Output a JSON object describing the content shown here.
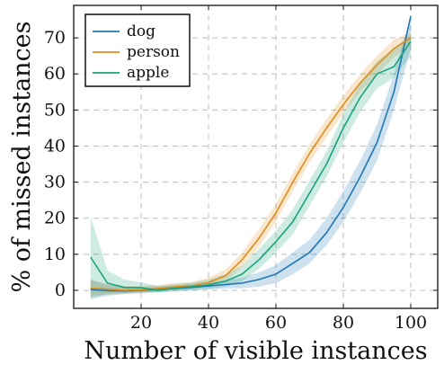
{
  "chart_data": {
    "type": "line",
    "title": "",
    "xlabel": "Number of visible instances",
    "ylabel": "% of missed instances",
    "xlim": [
      0,
      108
    ],
    "ylim": [
      -5,
      79
    ],
    "xticks": [
      20,
      40,
      60,
      80,
      100
    ],
    "yticks": [
      0,
      10,
      20,
      30,
      40,
      50,
      60,
      70
    ],
    "grid": true,
    "legend_position": "top-left",
    "series": [
      {
        "name": "dog",
        "color": "#1f77b4",
        "x": [
          5,
          10,
          15,
          20,
          25,
          30,
          35,
          40,
          45,
          50,
          55,
          60,
          65,
          70,
          75,
          80,
          85,
          90,
          95,
          100
        ],
        "y": [
          0.2,
          -0.1,
          -0.2,
          0.0,
          0.2,
          0.5,
          0.8,
          1.2,
          1.6,
          2.0,
          3.0,
          4.5,
          7.5,
          10.5,
          16.0,
          23.0,
          31.5,
          41.0,
          55.0,
          76.0
        ],
        "lower": [
          -2.5,
          -1.5,
          -1.0,
          -0.8,
          -0.6,
          -0.3,
          0.0,
          0.3,
          0.5,
          0.6,
          1.0,
          2.0,
          4.5,
          7.5,
          12.5,
          19.0,
          27.0,
          36.0,
          50.0,
          67.0
        ],
        "upper": [
          3.0,
          1.5,
          1.0,
          0.9,
          1.0,
          1.3,
          1.8,
          2.3,
          2.8,
          3.5,
          5.0,
          7.0,
          10.5,
          14.0,
          20.0,
          27.5,
          36.0,
          46.0,
          60.0,
          76.0
        ]
      },
      {
        "name": "person",
        "color": "#e08c1a",
        "x": [
          5,
          10,
          15,
          20,
          25,
          30,
          35,
          40,
          45,
          50,
          55,
          60,
          65,
          70,
          75,
          80,
          85,
          90,
          95,
          100
        ],
        "y": [
          0.6,
          0.3,
          0.0,
          0.1,
          0.5,
          1.0,
          1.2,
          2.2,
          4.0,
          8.5,
          14.5,
          21.5,
          30.0,
          38.0,
          45.0,
          51.5,
          57.5,
          62.5,
          67.0,
          70.0
        ],
        "lower": [
          -1.5,
          -1.2,
          -1.0,
          -0.8,
          -0.3,
          0.2,
          0.4,
          1.2,
          2.5,
          6.5,
          12.0,
          19.0,
          27.5,
          35.5,
          42.5,
          49.0,
          55.0,
          60.0,
          64.5,
          68.0
        ],
        "upper": [
          2.8,
          1.8,
          1.2,
          1.2,
          1.5,
          2.0,
          2.3,
          3.5,
          5.8,
          10.5,
          17.0,
          24.0,
          32.5,
          40.5,
          47.5,
          54.0,
          60.0,
          65.0,
          69.5,
          71.5
        ]
      },
      {
        "name": "apple",
        "color": "#1aa37a",
        "x": [
          5,
          10,
          15,
          20,
          25,
          30,
          35,
          40,
          45,
          50,
          55,
          60,
          65,
          70,
          75,
          80,
          85,
          90,
          95,
          100
        ],
        "y": [
          9.2,
          2.0,
          0.8,
          0.7,
          0.0,
          0.6,
          1.0,
          1.5,
          2.5,
          4.5,
          8.5,
          13.5,
          19.0,
          27.0,
          35.0,
          45.0,
          53.5,
          60.0,
          62.0,
          69.0
        ],
        "lower": [
          -2.0,
          -1.0,
          -0.8,
          -0.5,
          -0.6,
          -0.2,
          0.0,
          0.3,
          1.0,
          2.5,
          6.0,
          10.5,
          15.5,
          23.5,
          31.5,
          41.0,
          49.5,
          56.0,
          59.0,
          65.0
        ],
        "upper": [
          20.5,
          5.5,
          3.0,
          2.2,
          1.2,
          1.8,
          2.2,
          3.0,
          4.5,
          6.8,
          11.5,
          16.5,
          22.5,
          30.5,
          38.5,
          49.0,
          57.5,
          63.5,
          67.0,
          71.0
        ]
      }
    ]
  }
}
